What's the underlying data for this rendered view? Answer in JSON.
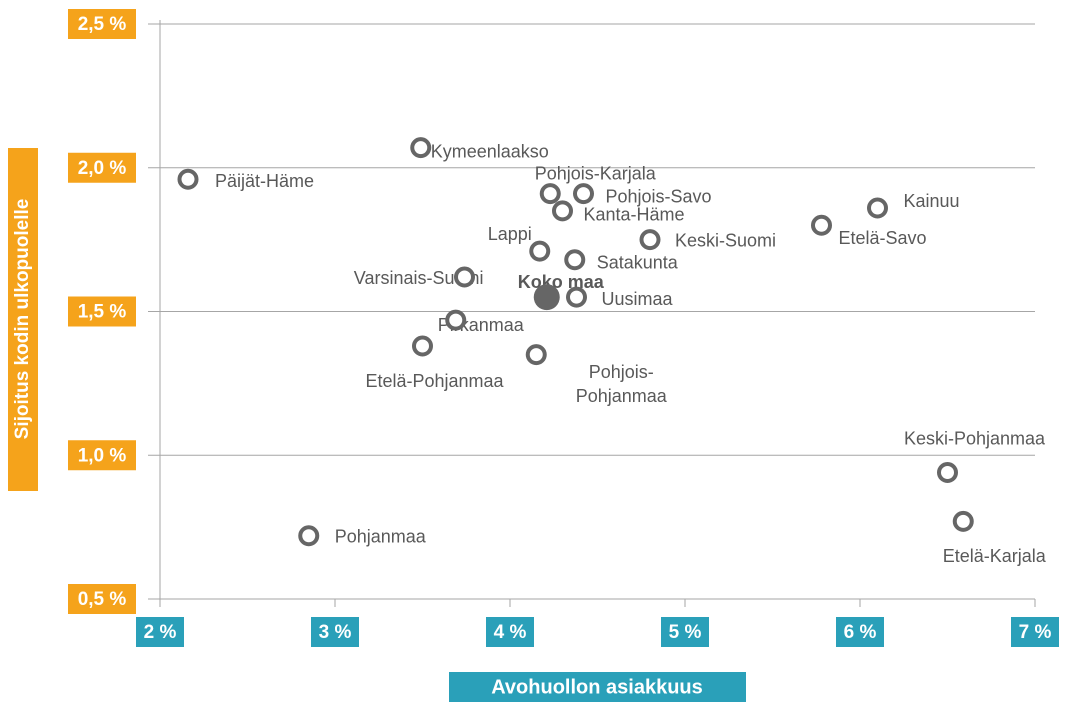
{
  "chart_data": {
    "type": "scatter",
    "xlabel": "Avohuollon asiakkuus",
    "ylabel": "Sijoitus kodin ulkopuolelle",
    "xlim": [
      2,
      7
    ],
    "ylim": [
      0.5,
      2.5
    ],
    "xticks": [
      {
        "value": 2,
        "label": "2 %"
      },
      {
        "value": 3,
        "label": "3 %"
      },
      {
        "value": 4,
        "label": "4 %"
      },
      {
        "value": 5,
        "label": "5 %"
      },
      {
        "value": 6,
        "label": "6 %"
      },
      {
        "value": 7,
        "label": "7 %"
      }
    ],
    "yticks": [
      {
        "value": 0.5,
        "label": "0,5 %"
      },
      {
        "value": 1.0,
        "label": "1,0 %"
      },
      {
        "value": 1.5,
        "label": "1,5 %"
      },
      {
        "value": 2.0,
        "label": "2,0 %"
      },
      {
        "value": 2.5,
        "label": "2,5 %"
      }
    ],
    "grid": true,
    "marker_color": "#666666",
    "points": [
      {
        "label": "Päijät-Häme",
        "x": 2.16,
        "y": 1.96
      },
      {
        "label": "Kymeenlaakso",
        "x": 3.49,
        "y": 2.07
      },
      {
        "label": "Pohjois-Karjala",
        "x": 4.23,
        "y": 1.91
      },
      {
        "label": "Pohjois-Savo",
        "x": 4.42,
        "y": 1.91
      },
      {
        "label": "Kanta-Häme",
        "x": 4.3,
        "y": 1.85
      },
      {
        "label": "Kainuu",
        "x": 6.1,
        "y": 1.86
      },
      {
        "label": "Etelä-Savo",
        "x": 5.78,
        "y": 1.8
      },
      {
        "label": "Lappi",
        "x": 4.17,
        "y": 1.71
      },
      {
        "label": "Keski-Suomi",
        "x": 4.8,
        "y": 1.75
      },
      {
        "label": "Satakunta",
        "x": 4.37,
        "y": 1.68
      },
      {
        "label": "Varsinais-Suomi",
        "x": 3.74,
        "y": 1.62
      },
      {
        "label": "Koko maa",
        "x": 4.21,
        "y": 1.55,
        "filled": true
      },
      {
        "label": "Uusimaa",
        "x": 4.38,
        "y": 1.55
      },
      {
        "label": "Pirkanmaa",
        "x": 3.69,
        "y": 1.47
      },
      {
        "label": "Etelä-Pohjanmaa",
        "x": 3.5,
        "y": 1.38
      },
      {
        "label": "Pohjois-Pohjanmaa",
        "x": 4.15,
        "y": 1.35
      },
      {
        "label": "Keski-Pohjanmaa",
        "x": 6.5,
        "y": 0.94
      },
      {
        "label": "Etelä-Karjala",
        "x": 6.59,
        "y": 0.77
      },
      {
        "label": "Pohjanmaa",
        "x": 2.85,
        "y": 0.72
      }
    ]
  }
}
